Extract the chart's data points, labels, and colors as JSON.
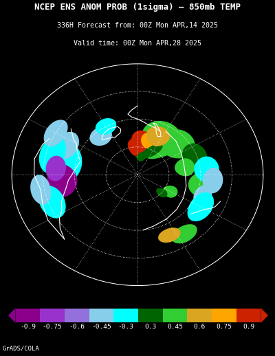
{
  "title_line1": "NCEP ENS ANOM PROB (1sigma) – 850mb TEMP",
  "title_line2": "336H Forecast from: 00Z Mon APR,14 2025",
  "title_line3": "Valid time: 00Z Mon APR,28 2025",
  "credit": "GrADS/COLA",
  "background_color": "#000000",
  "colorbar_segments": [
    {
      "color": "#8B008B"
    },
    {
      "color": "#9932CC"
    },
    {
      "color": "#9370DB"
    },
    {
      "color": "#87CEEB"
    },
    {
      "color": "#00FFFF"
    },
    {
      "color": "#006400"
    },
    {
      "color": "#32CD32"
    },
    {
      "color": "#DAA520"
    },
    {
      "color": "#FFA500"
    },
    {
      "color": "#CC2200"
    }
  ],
  "colorbar_labels": [
    "-0.9",
    "-0.75",
    "-0.6",
    "-0.45",
    "-0.3",
    "0.3",
    "0.45",
    "0.6",
    "0.75",
    "0.9"
  ],
  "fig_width": 4.0,
  "fig_height": 5.18,
  "dpi": 100,
  "title_fontsize": 9.0,
  "subtitle_fontsize": 7.2,
  "credit_fontsize": 6.5
}
